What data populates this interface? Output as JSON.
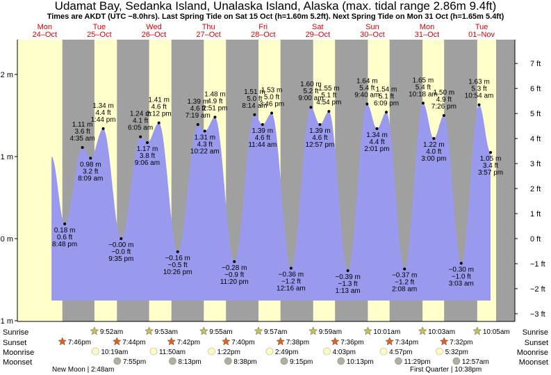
{
  "title": "Udamat Bay, Sedanka Island, Unalaska Island, Alaska (max. tidal range 2.86m 9.4ft)",
  "subtitle": "Times are AKDT (UTC −8.0hrs). Last Spring Tide on Sat 15 Oct (h=1.60m 5.2ft). Next Spring Tide on Mon 31 Oct (h=1.65m 5.4ft)",
  "colors": {
    "day": "#ffffcc",
    "night": "#a0a0a0",
    "tide_fill": "#9999ee",
    "day_label": "#dd0000",
    "sunrise_star": "#c8c050",
    "sunset_star": "#e06020",
    "moonrise": "#ffffbb",
    "moonset": "#b0b0a0"
  },
  "row_labels": [
    "Sunrise",
    "Sunset",
    "Moonrise",
    "Moonset"
  ],
  "moon_phases": [
    "New Moon | 2:48am",
    "First Quarter | 10:38pm"
  ],
  "chart_data": {
    "type": "area",
    "title": "Udamat Bay, Sedanka Island, Unalaska Island, Alaska (max. tidal range 2.86m 9.4ft)",
    "y_unit_left": "m",
    "y_unit_right": "ft",
    "ylim_m": [
      -1,
      2.4
    ],
    "left_ticks": [
      "−1 m",
      "0 m",
      "1 m",
      "2 m"
    ],
    "left_tick_values": [
      -1,
      0,
      1,
      2
    ],
    "right_ticks": [
      "−3 ft",
      "−2 ft",
      "−1 ft",
      "0 ft",
      "1 ft",
      "2 ft",
      "3 ft",
      "4 ft",
      "5 ft",
      "6 ft",
      "7 ft"
    ],
    "right_tick_values": [
      -3,
      -2,
      -1,
      0,
      1,
      2,
      3,
      4,
      5,
      6,
      7
    ],
    "days": [
      {
        "name": "Mon",
        "date": "24–Oct",
        "day": 0
      },
      {
        "name": "Tue",
        "date": "25–Oct",
        "day": 1
      },
      {
        "name": "Wed",
        "date": "26–Oct",
        "day": 2
      },
      {
        "name": "Thu",
        "date": "27–Oct",
        "day": 3
      },
      {
        "name": "Fri",
        "date": "28–Oct",
        "day": 4
      },
      {
        "name": "Sat",
        "date": "29–Oct",
        "day": 5
      },
      {
        "name": "Sun",
        "date": "30–Oct",
        "day": 6
      },
      {
        "name": "Mon",
        "date": "31–Oct",
        "day": 7
      },
      {
        "name": "Tue",
        "date": "01–Nov",
        "day": 8
      }
    ],
    "tide_start": {
      "day": 0,
      "time": "3:00pm",
      "h": 1.0
    },
    "tide_end": {
      "day": 8,
      "time": "3:57pm",
      "h": 1.05
    },
    "tides": [
      {
        "day": 0,
        "time": "8:48 pm",
        "h": 0.18,
        "m": "0.18 m",
        "ft": "0.6 ft",
        "type": "low"
      },
      {
        "day": 1,
        "time": "4:35 am",
        "h": 1.11,
        "m": "1.11 m",
        "ft": "3.6 ft",
        "type": "high"
      },
      {
        "day": 1,
        "time": "8:09 am",
        "h": 0.98,
        "m": "0.98 m",
        "ft": "3.2 ft",
        "type": "low"
      },
      {
        "day": 1,
        "time": "1:44 pm",
        "h": 1.34,
        "m": "1.34 m",
        "ft": "4.4 ft",
        "type": "high"
      },
      {
        "day": 1,
        "time": "9:35 pm",
        "h": -0.0,
        "m": "−0.00 m",
        "ft": "−0.0 ft",
        "type": "low"
      },
      {
        "day": 2,
        "time": "6:05 am",
        "h": 1.24,
        "m": "1.24 m",
        "ft": "4.1 ft",
        "type": "high"
      },
      {
        "day": 2,
        "time": "9:06 am",
        "h": 1.17,
        "m": "1.17 m",
        "ft": "3.8 ft",
        "type": "low"
      },
      {
        "day": 2,
        "time": "2:12 pm",
        "h": 1.41,
        "m": "1.41 m",
        "ft": "4.6 ft",
        "type": "high"
      },
      {
        "day": 2,
        "time": "10:26 pm",
        "h": -0.16,
        "m": "−0.16 m",
        "ft": "−0.5 ft",
        "type": "low"
      },
      {
        "day": 3,
        "time": "7:19 am",
        "h": 1.39,
        "m": "1.39 m",
        "ft": "4.6 ft",
        "type": "high"
      },
      {
        "day": 3,
        "time": "10:22 am",
        "h": 1.31,
        "m": "1.31 m",
        "ft": "4.3 ft",
        "type": "low"
      },
      {
        "day": 3,
        "time": "2:51 pm",
        "h": 1.48,
        "m": "1.48 m",
        "ft": "4.9 ft",
        "type": "high"
      },
      {
        "day": 3,
        "time": "11:20 pm",
        "h": -0.28,
        "m": "−0.28 m",
        "ft": "−0.9 ft",
        "type": "low"
      },
      {
        "day": 4,
        "time": "8:14 am",
        "h": 1.51,
        "m": "1.51 m",
        "ft": "5.0 ft",
        "type": "high"
      },
      {
        "day": 4,
        "time": "11:44 am",
        "h": 1.39,
        "m": "1.39 m",
        "ft": "4.6 ft",
        "type": "low"
      },
      {
        "day": 4,
        "time": "3:46 pm",
        "h": 1.53,
        "m": "1.53 m",
        "ft": "5.0 ft",
        "type": "high"
      },
      {
        "day": 5,
        "time": "12:16 am",
        "h": -0.36,
        "m": "−0.36 m",
        "ft": "−1.2 ft",
        "type": "low"
      },
      {
        "day": 5,
        "time": "9:00 am",
        "h": 1.6,
        "m": "1.60 m",
        "ft": "5.2 ft",
        "type": "high"
      },
      {
        "day": 5,
        "time": "12:57 pm",
        "h": 1.39,
        "m": "1.39 m",
        "ft": "4.6 ft",
        "type": "low"
      },
      {
        "day": 5,
        "time": "4:54 pm",
        "h": 1.55,
        "m": "1.55 m",
        "ft": "5.1 ft",
        "type": "high"
      },
      {
        "day": 6,
        "time": "1:13 am",
        "h": -0.39,
        "m": "−0.39 m",
        "ft": "−1.3 ft",
        "type": "low"
      },
      {
        "day": 6,
        "time": "9:40 am",
        "h": 1.64,
        "m": "1.64 m",
        "ft": "5.4 ft",
        "type": "high"
      },
      {
        "day": 6,
        "time": "2:01 pm",
        "h": 1.34,
        "m": "1.34 m",
        "ft": "4.4 ft",
        "type": "low"
      },
      {
        "day": 6,
        "time": "6:09 pm",
        "h": 1.54,
        "m": "1.54 m",
        "ft": "5.1 ft",
        "type": "high"
      },
      {
        "day": 7,
        "time": "2:08 am",
        "h": -0.37,
        "m": "−0.37 m",
        "ft": "−1.2 ft",
        "type": "low"
      },
      {
        "day": 7,
        "time": "10:18 am",
        "h": 1.65,
        "m": "1.65 m",
        "ft": "5.4 ft",
        "type": "high"
      },
      {
        "day": 7,
        "time": "3:00 pm",
        "h": 1.22,
        "m": "1.22 m",
        "ft": "4.0 ft",
        "type": "low"
      },
      {
        "day": 7,
        "time": "7:26 pm",
        "h": 1.5,
        "m": "1.50 m",
        "ft": "4.9 ft",
        "type": "high"
      },
      {
        "day": 8,
        "time": "3:03 am",
        "h": -0.3,
        "m": "−0.30 m",
        "ft": "−1.0 ft",
        "type": "low"
      },
      {
        "day": 8,
        "time": "10:54 am",
        "h": 1.63,
        "m": "1.63 m",
        "ft": "5.3 ft",
        "type": "high"
      },
      {
        "day": 8,
        "time": "3:57 pm",
        "h": 1.05,
        "m": "1.05 m",
        "ft": "3.4 ft",
        "type": "low"
      }
    ],
    "sunrise": [
      {
        "day": 1,
        "time": "9:52am"
      },
      {
        "day": 2,
        "time": "9:53am"
      },
      {
        "day": 3,
        "time": "9:55am"
      },
      {
        "day": 4,
        "time": "9:57am"
      },
      {
        "day": 5,
        "time": "9:59am"
      },
      {
        "day": 6,
        "time": "10:01am"
      },
      {
        "day": 7,
        "time": "10:03am"
      },
      {
        "day": 8,
        "time": "10:05am"
      }
    ],
    "sunset": [
      {
        "day": 0,
        "time": "7:46pm"
      },
      {
        "day": 1,
        "time": "7:44pm"
      },
      {
        "day": 2,
        "time": "7:42pm"
      },
      {
        "day": 3,
        "time": "7:40pm"
      },
      {
        "day": 4,
        "time": "7:38pm"
      },
      {
        "day": 5,
        "time": "7:36pm"
      },
      {
        "day": 6,
        "time": "7:34pm"
      },
      {
        "day": 7,
        "time": "7:32pm"
      }
    ],
    "moonrise": [
      {
        "day": 1,
        "time": "10:19am"
      },
      {
        "day": 2,
        "time": "11:50am"
      },
      {
        "day": 3,
        "time": "1:22pm"
      },
      {
        "day": 4,
        "time": "2:49pm"
      },
      {
        "day": 5,
        "time": "4:03pm"
      },
      {
        "day": 6,
        "time": "4:57pm"
      },
      {
        "day": 7,
        "time": "5:32pm"
      }
    ],
    "moonset": [
      {
        "day": 1,
        "time": "7:55pm"
      },
      {
        "day": 2,
        "time": "8:13pm"
      },
      {
        "day": 3,
        "time": "8:38pm"
      },
      {
        "day": 4,
        "time": "9:15pm"
      },
      {
        "day": 5,
        "time": "10:13pm"
      },
      {
        "day": 6,
        "time": "11:29pm"
      },
      {
        "day": 8,
        "time": "12:57am"
      }
    ]
  }
}
